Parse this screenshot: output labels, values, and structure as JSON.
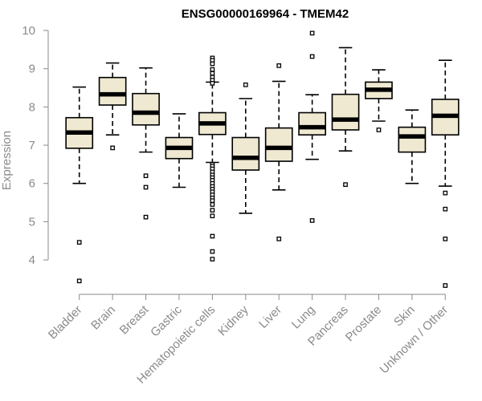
{
  "chart_data": {
    "type": "box",
    "title": "ENSG00000169964 - TMEM42",
    "xlabel": "",
    "ylabel": "Expression",
    "ylim": [
      3.1,
      10
    ],
    "yticks": [
      4,
      5,
      6,
      7,
      8,
      9,
      10
    ],
    "grid": false,
    "colors": {
      "box_fill": "#efe9d2",
      "box_stroke": "#000000",
      "axis": "#8a8a8a"
    },
    "categories": [
      "Bladder",
      "Brain",
      "Breast",
      "Gastric",
      "Hematopoietic cells",
      "Kidney",
      "Liver",
      "Lung",
      "Pancreas",
      "Prostate",
      "Skin",
      "Unknown / Other"
    ],
    "boxes": [
      {
        "name": "Bladder",
        "whisker_low": 6.0,
        "q1": 6.92,
        "median": 7.33,
        "q3": 7.72,
        "whisker_high": 8.52,
        "outliers": [
          4.46,
          3.45
        ]
      },
      {
        "name": "Brain",
        "whisker_low": 7.27,
        "q1": 8.05,
        "median": 8.33,
        "q3": 8.77,
        "whisker_high": 9.15,
        "outliers": [
          6.93
        ]
      },
      {
        "name": "Breast",
        "whisker_low": 6.82,
        "q1": 7.53,
        "median": 7.85,
        "q3": 8.35,
        "whisker_high": 9.02,
        "outliers": [
          6.2,
          5.9,
          5.12
        ]
      },
      {
        "name": "Gastric",
        "whisker_low": 5.9,
        "q1": 6.65,
        "median": 6.93,
        "q3": 7.2,
        "whisker_high": 7.82,
        "outliers": []
      },
      {
        "name": "Hematopoietic cells",
        "whisker_low": 6.55,
        "q1": 7.28,
        "median": 7.57,
        "q3": 7.85,
        "whisker_high": 8.65,
        "outliers": [
          9.28,
          9.22,
          9.13,
          8.98,
          8.88,
          8.78,
          8.7,
          8.62,
          6.5,
          6.45,
          6.38,
          6.3,
          6.22,
          6.15,
          6.08,
          6.0,
          5.92,
          5.85,
          5.78,
          5.7,
          5.62,
          5.55,
          5.45,
          5.3,
          5.15,
          4.62,
          4.22,
          4.02
        ]
      },
      {
        "name": "Kidney",
        "whisker_low": 5.22,
        "q1": 6.35,
        "median": 6.67,
        "q3": 7.2,
        "whisker_high": 8.22,
        "outliers": [
          8.58
        ]
      },
      {
        "name": "Liver",
        "whisker_low": 5.83,
        "q1": 6.58,
        "median": 6.93,
        "q3": 7.45,
        "whisker_high": 8.67,
        "outliers": [
          9.08,
          4.55
        ]
      },
      {
        "name": "Lung",
        "whisker_low": 6.63,
        "q1": 7.27,
        "median": 7.47,
        "q3": 7.85,
        "whisker_high": 8.32,
        "outliers": [
          9.93,
          9.32,
          5.03
        ]
      },
      {
        "name": "Pancreas",
        "whisker_low": 6.85,
        "q1": 7.4,
        "median": 7.67,
        "q3": 8.33,
        "whisker_high": 9.55,
        "outliers": [
          5.97
        ]
      },
      {
        "name": "Prostate",
        "whisker_low": 7.63,
        "q1": 8.22,
        "median": 8.45,
        "q3": 8.65,
        "whisker_high": 8.97,
        "outliers": [
          7.4
        ]
      },
      {
        "name": "Skin",
        "whisker_low": 6.0,
        "q1": 6.82,
        "median": 7.23,
        "q3": 7.47,
        "whisker_high": 7.92,
        "outliers": []
      },
      {
        "name": "Unknown / Other",
        "whisker_low": 5.93,
        "q1": 7.27,
        "median": 7.77,
        "q3": 8.2,
        "whisker_high": 9.22,
        "outliers": [
          5.75,
          5.33,
          4.55,
          3.33
        ]
      }
    ]
  }
}
